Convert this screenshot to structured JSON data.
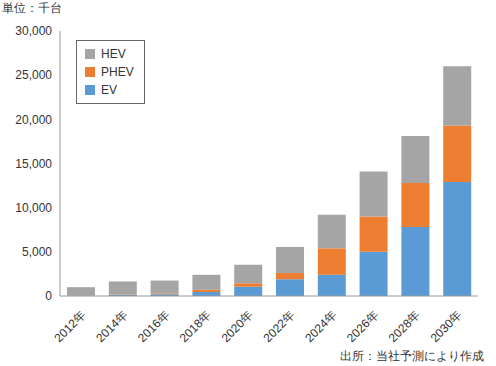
{
  "chart_data": {
    "type": "bar",
    "stacked": true,
    "unit_label": "単位：千台",
    "source": "出所：当社予測により作成",
    "categories": [
      "2012年",
      "2014年",
      "2016年",
      "2018年",
      "2020年",
      "2022年",
      "2024年",
      "2026年",
      "2028年",
      "2030年"
    ],
    "series": [
      {
        "name": "EV",
        "color": "#5b9bd5",
        "values": [
          50,
          150,
          200,
          450,
          1050,
          1900,
          2400,
          5000,
          7800,
          12900
        ]
      },
      {
        "name": "PHEV",
        "color": "#ed7d31",
        "values": [
          20,
          50,
          100,
          250,
          400,
          700,
          3000,
          4000,
          5000,
          6400
        ]
      },
      {
        "name": "HEV",
        "color": "#a5a5a5",
        "values": [
          930,
          1450,
          1450,
          1700,
          2100,
          2950,
          3800,
          5100,
          5300,
          6700
        ]
      }
    ],
    "ylim": [
      0,
      30000
    ],
    "yticks": [
      0,
      {
        "value": 5000,
        "label": "5,000"
      },
      {
        "value": 10000,
        "label": "10,000"
      },
      {
        "value": 15000,
        "label": "15,000"
      },
      {
        "value": 20000,
        "label": "20,000"
      },
      {
        "value": 25000,
        "label": "25,000"
      },
      {
        "value": 30000,
        "label": "30,000"
      }
    ],
    "grid": false,
    "legend": "upper left"
  }
}
